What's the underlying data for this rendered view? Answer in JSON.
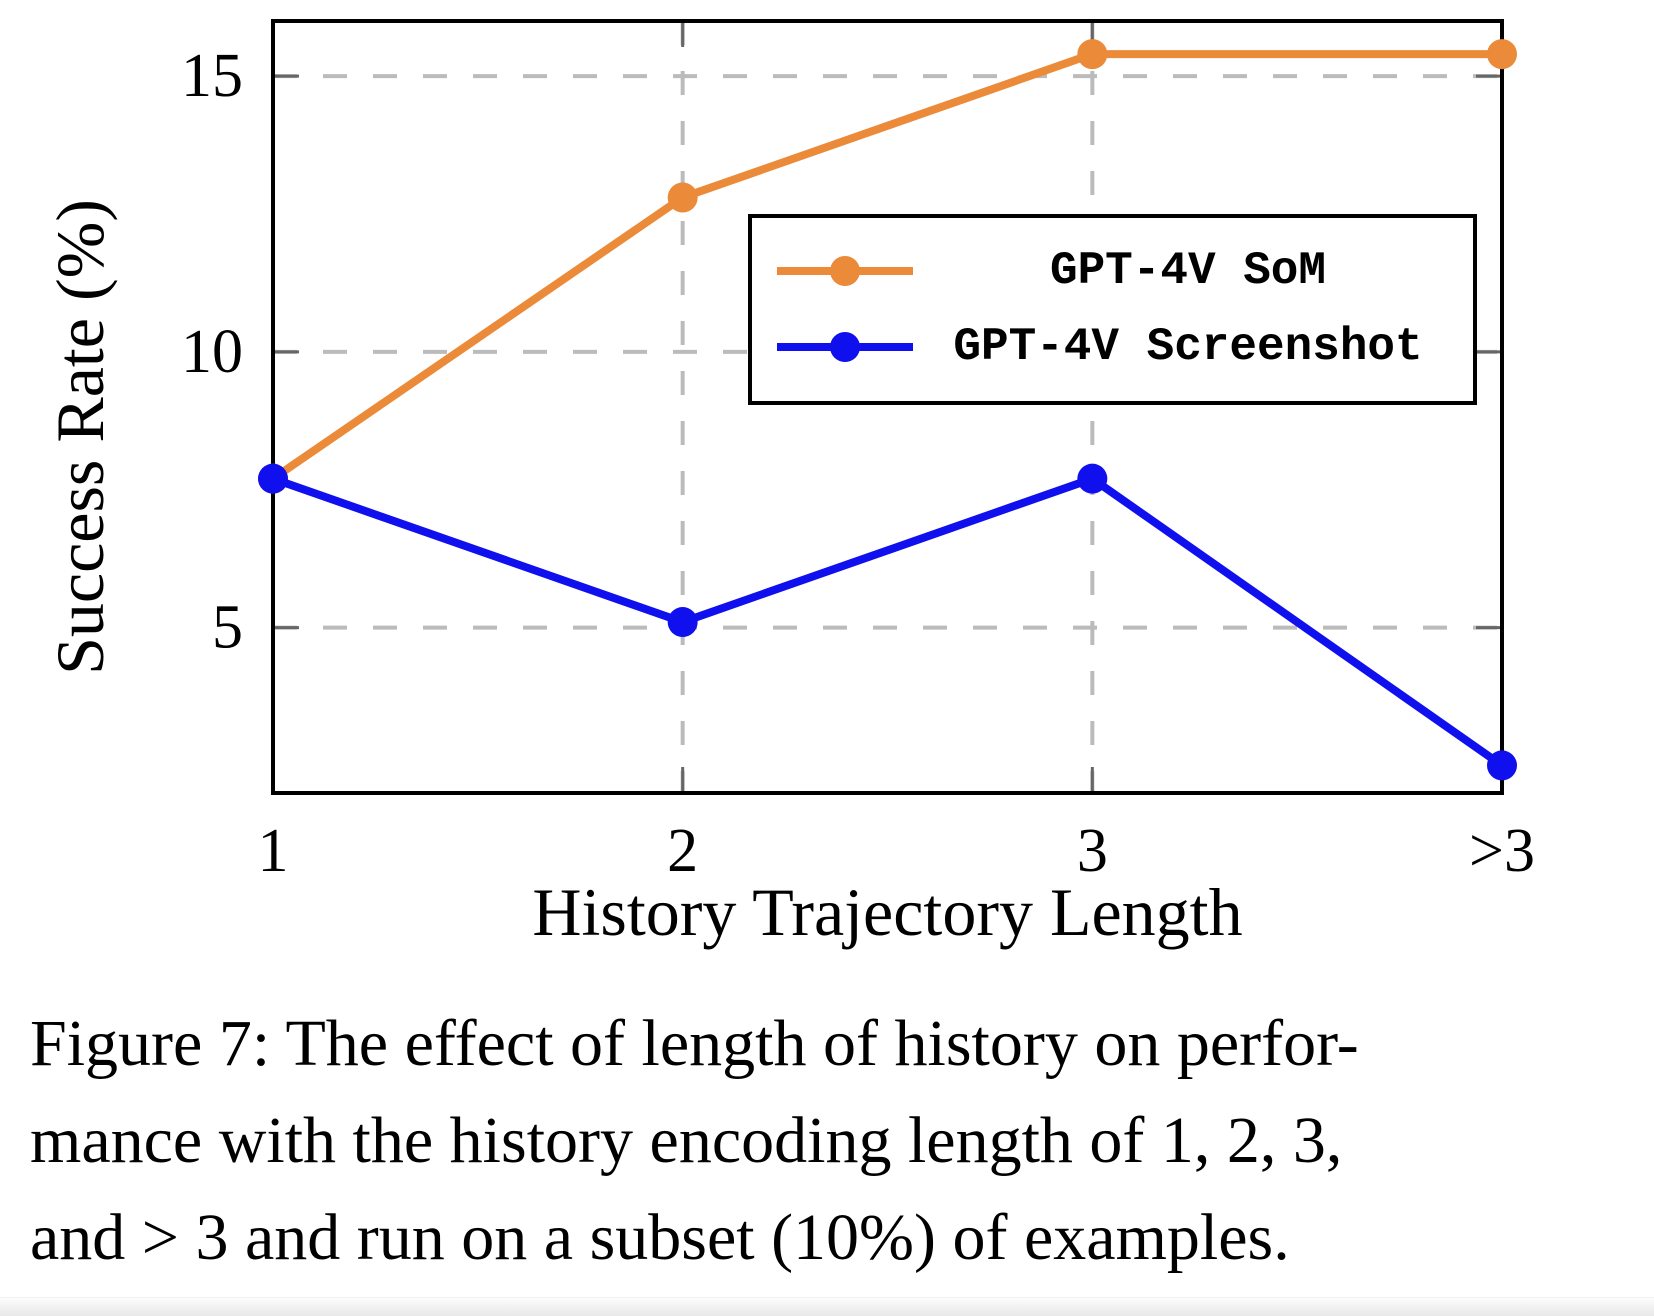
{
  "chart_data": {
    "type": "line",
    "title": "",
    "xlabel": "History Trajectory Length",
    "ylabel": "Success Rate (%)",
    "categories": [
      "1",
      "2",
      "3",
      ">3"
    ],
    "series": [
      {
        "name": "GPT-4V SoM",
        "color": "#EB8A38",
        "values": [
          7.7,
          12.8,
          15.4,
          15.4
        ]
      },
      {
        "name": "GPT-4V Screenshot",
        "color": "#1010EE",
        "values": [
          7.7,
          5.1,
          7.7,
          2.5
        ]
      }
    ],
    "yticks": [
      5,
      10,
      15
    ],
    "ylim": [
      2,
      16
    ],
    "grid": "dashed-both-axes",
    "legend_position": "upper-right-inside"
  },
  "colors": {
    "grid": "#BBBBBB",
    "tick": "#666666",
    "axis": "#000000",
    "legend_border": "#000000",
    "background": "#FFFFFF"
  },
  "caption": {
    "label": "Figure 7:",
    "lines": [
      "Figure 7: The effect of length of history on perfor-",
      "mance with the history encoding length of 1, 2, 3,",
      "and > 3 and run on a subset (10%) of examples."
    ]
  }
}
